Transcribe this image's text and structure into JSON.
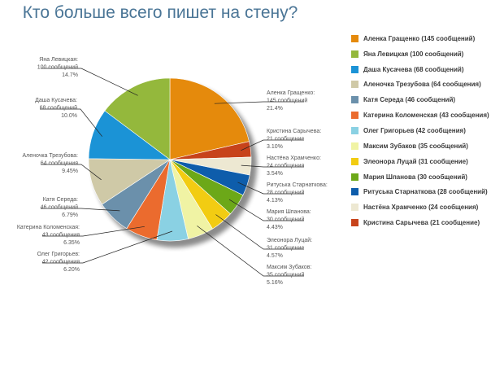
{
  "chart_data": {
    "type": "pie",
    "title": "Кто больше всего пишет на стену?",
    "slices": [
      {
        "name": "Аленка Гращенко",
        "value": 145,
        "unit_text": "145 сообщений",
        "pct_text": "21.4%",
        "legend": "Аленка Гращенко (145 сообщений)",
        "color": "#e58a0c"
      },
      {
        "name": "Кристина Сарычева",
        "value": 21,
        "unit_text": "21 сообщение",
        "pct_text": "3.10%",
        "legend": "Кристина Сарычева (21 сообщение)",
        "color": "#c7431b"
      },
      {
        "name": "Настёна Храмченко",
        "value": 24,
        "unit_text": "24 сообщения",
        "pct_text": "3.54%",
        "legend": "Настёна Храмченко (24 сообщения)",
        "color": "#ede8d2"
      },
      {
        "name": "Ритуська Старнаткова",
        "value": 28,
        "unit_text": "28 сообщений",
        "pct_text": "4.13%",
        "legend": "Ритуська Старнаткова (28 сообщений)",
        "color": "#0e5dab"
      },
      {
        "name": "Мария Шпанова",
        "value": 30,
        "unit_text": "30 сообщений",
        "pct_text": "4.43%",
        "legend": "Мария Шпанова (30 сообщений)",
        "color": "#6ca818"
      },
      {
        "name": "Элеонора Луцай",
        "value": 31,
        "unit_text": "31 сообщение",
        "pct_text": "4.57%",
        "legend": "Элеонора Луцай (31 сообщение)",
        "color": "#f2cc12"
      },
      {
        "name": "Максим Зубаков",
        "value": 35,
        "unit_text": "35 сообщений",
        "pct_text": "5.16%",
        "legend": "Максим Зубаков (35 сообщений)",
        "color": "#f0f3a4"
      },
      {
        "name": "Олег Григорьев",
        "value": 42,
        "unit_text": "42 сообщения",
        "pct_text": "6.20%",
        "legend": "Олег Григорьев (42 сообщения)",
        "color": "#8ad1e3"
      },
      {
        "name": "Катерина Коломенская",
        "value": 43,
        "unit_text": "43 сообщения",
        "pct_text": "6.35%",
        "legend": "Катерина Коломенская (43 сообщения)",
        "color": "#eb6b2e"
      },
      {
        "name": "Катя Середа",
        "value": 46,
        "unit_text": "46 сообщений",
        "pct_text": "6.79%",
        "legend": "Катя Середа (46 сообщений)",
        "color": "#6b90ab"
      },
      {
        "name": "Аленочка Трезубова",
        "value": 64,
        "unit_text": "64 сообщения",
        "pct_text": "9.45%",
        "legend": "Аленочка Трезубова (64 сообщения)",
        "color": "#cfc9a7"
      },
      {
        "name": "Даша Кусачева",
        "value": 68,
        "unit_text": "68 сообщений",
        "pct_text": "10.0%",
        "legend": "Даша Кусачева (68 сообщений)",
        "color": "#1b93d6"
      },
      {
        "name": "Яна Левицкая",
        "value": 100,
        "unit_text": "100 сообщений",
        "pct_text": "14.7%",
        "legend": "Яна Левицкая (100 сообщений)",
        "color": "#94b83c"
      }
    ],
    "legend_order": [
      "Аленка Гращенко",
      "Яна Левицкая",
      "Даша Кусачева",
      "Аленочка Трезубова",
      "Катя Середа",
      "Катерина Коломенская",
      "Олег Григорьев",
      "Максим Зубаков",
      "Элеонора Луцай",
      "Мария Шпанова",
      "Ритуська Старнаткова",
      "Настёна Храмченко",
      "Кристина Сарычева"
    ],
    "legend_placement": "right"
  }
}
